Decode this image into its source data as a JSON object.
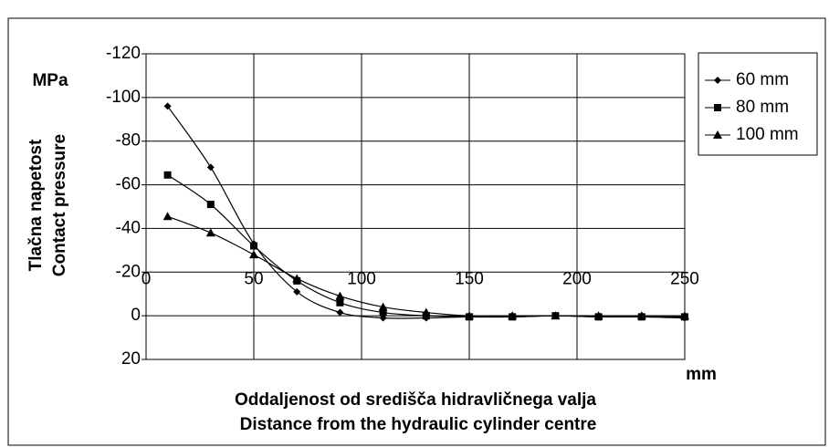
{
  "chart_data": {
    "type": "line",
    "x_label": [
      "Oddaljenost od središča hidravličnega valja",
      "Distance from the hydraulic cylinder centre"
    ],
    "y_label": [
      "Tlačna napetost",
      "Contact pressure"
    ],
    "y_unit": "MPa",
    "x_unit": "mm",
    "x": [
      10,
      30,
      50,
      70,
      90,
      110,
      130,
      150,
      170,
      190,
      210,
      230,
      250
    ],
    "series": [
      {
        "name": "60 mm",
        "color": "#000000",
        "marker": "diamond",
        "values": [
          -96,
          -68,
          -33,
          -11,
          -1.5,
          1,
          1,
          0.5,
          0.5,
          0,
          0.5,
          0.5,
          1
        ]
      },
      {
        "name": "80 mm",
        "color": "#000000",
        "marker": "square",
        "values": [
          -64.5,
          -51,
          -32,
          -16,
          -6,
          -1.5,
          0,
          0.5,
          0.5,
          0,
          0.5,
          0.5,
          0.5
        ]
      },
      {
        "name": "100 mm",
        "color": "#000000",
        "marker": "triangle",
        "values": [
          -45.5,
          -38,
          -28,
          -17,
          -9,
          -4,
          -1.5,
          0,
          0,
          0,
          0,
          0,
          0
        ]
      }
    ],
    "xlim": [
      0,
      250
    ],
    "xticks": [
      0,
      50,
      100,
      150,
      200,
      250
    ],
    "ylim": [
      20,
      -120
    ],
    "yticks": [
      -120,
      -100,
      -80,
      -60,
      -40,
      -20,
      0,
      20
    ],
    "grid": true,
    "legend": "right"
  }
}
